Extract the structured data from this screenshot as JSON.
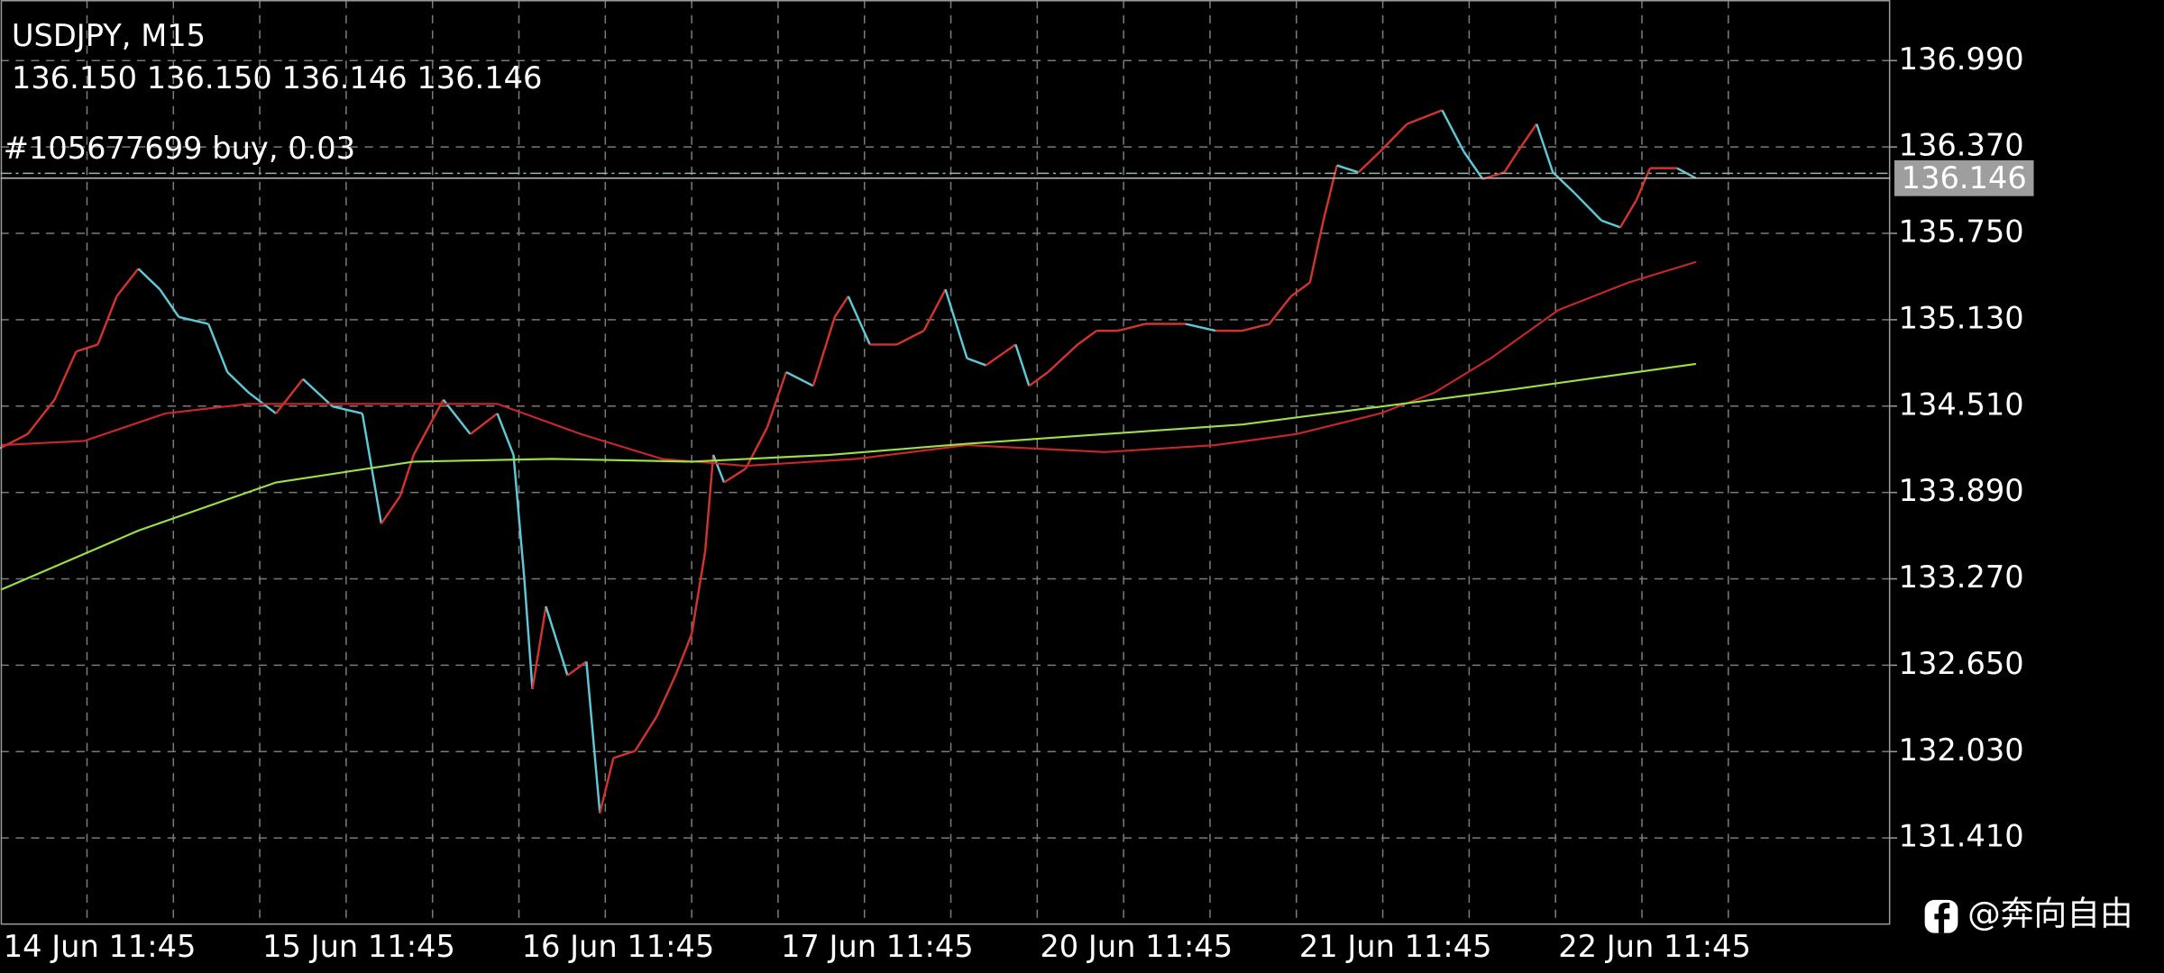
{
  "chart_data": {
    "type": "line",
    "title": "USDJPY, M15",
    "subtitle": "136.150 136.150 136.146 136.146",
    "annotation": "#105677699 buy, 0.03",
    "watermark": "@奔向自由",
    "current_price": 136.146,
    "order_price": 136.181,
    "xlim": [
      0,
      700
    ],
    "xticks": [
      {
        "value": 0,
        "label": "14 Jun 11:45"
      },
      {
        "value": 96,
        "label": "15 Jun 11:45"
      },
      {
        "value": 192,
        "label": "16 Jun 11:45"
      },
      {
        "value": 288,
        "label": "17 Jun 11:45"
      },
      {
        "value": 384,
        "label": "20 Jun 11:45"
      },
      {
        "value": 480,
        "label": "21 Jun 11:45"
      },
      {
        "value": 576,
        "label": "22 Jun 11:45"
      }
    ],
    "ylim": [
      130.797,
      137.425
    ],
    "yticks": [
      {
        "value": 131.41,
        "label": "131.410"
      },
      {
        "value": 132.03,
        "label": "132.030"
      },
      {
        "value": 132.65,
        "label": "132.650"
      },
      {
        "value": 133.27,
        "label": "133.270"
      },
      {
        "value": 133.89,
        "label": "133.890"
      },
      {
        "value": 134.51,
        "label": "134.510"
      },
      {
        "value": 135.13,
        "label": "135.130"
      },
      {
        "value": 135.75,
        "label": "135.750"
      },
      {
        "value": 136.37,
        "label": "136.370"
      },
      {
        "value": 136.99,
        "label": "136.990"
      }
    ],
    "grid": true,
    "up_color": "#d0342c",
    "down_color": "#5ec9d6",
    "series": [
      {
        "color": "#5ec9d6",
        "x": [
          0,
          10,
          20,
          28,
          36,
          43,
          51,
          59,
          66,
          77,
          84,
          92,
          102,
          112,
          123,
          134,
          141,
          148,
          153,
          164,
          174,
          184,
          190,
          194,
          197,
          202,
          210,
          217,
          222,
          227,
          235,
          243,
          250,
          256,
          261,
          264,
          268,
          276,
          284,
          291,
          301,
          309,
          314,
          322,
          332,
          342,
          350,
          358,
          365,
          376,
          381,
          388,
          399,
          406,
          414,
          424,
          439,
          450,
          460,
          470,
          478,
          485,
          490,
          495,
          503,
          511,
          521,
          534,
          542,
          549,
          557,
          562,
          569,
          575,
          583,
          593,
          600,
          606,
          611,
          621,
          628
        ],
        "values": [
          134.21,
          134.309,
          134.556,
          134.902,
          134.952,
          135.298,
          135.496,
          135.348,
          135.15,
          135.1,
          134.754,
          134.605,
          134.457,
          134.704,
          134.507,
          134.457,
          133.666,
          133.864,
          134.16,
          134.556,
          134.309,
          134.457,
          134.16,
          133.27,
          132.479,
          133.072,
          132.577,
          132.676,
          131.588,
          131.984,
          132.034,
          132.281,
          132.577,
          132.874,
          133.468,
          134.16,
          133.962,
          134.061,
          134.358,
          134.754,
          134.655,
          135.15,
          135.298,
          134.952,
          134.952,
          135.051,
          135.348,
          134.853,
          134.803,
          134.952,
          134.655,
          134.754,
          134.952,
          135.051,
          135.051,
          135.1,
          135.1,
          135.051,
          135.051,
          135.1,
          135.298,
          135.397,
          135.842,
          136.238,
          136.188,
          136.337,
          136.535,
          136.634,
          136.337,
          136.14,
          136.188,
          136.337,
          136.535,
          136.188,
          136.04,
          135.842,
          135.793,
          135.99,
          136.218,
          136.218,
          136.146
        ]
      },
      {
        "color": "#c8272a",
        "x": [
          0,
          31,
          61,
          92,
          133,
          184,
          215,
          245,
          276,
          317,
          358,
          409,
          450,
          480,
          511,
          531,
          552,
          577,
          603,
          628
        ],
        "values": [
          134.23,
          134.26,
          134.457,
          134.526,
          134.526,
          134.526,
          134.309,
          134.131,
          134.081,
          134.131,
          134.23,
          134.18,
          134.23,
          134.309,
          134.457,
          134.605,
          134.853,
          135.199,
          135.397,
          135.545
        ]
      },
      {
        "color": "#9be04a",
        "x": [
          0,
          51,
          102,
          153,
          204,
          256,
          307,
          358,
          409,
          460,
          511,
          562,
          628
        ],
        "values": [
          133.191,
          133.616,
          133.962,
          134.111,
          134.131,
          134.111,
          134.16,
          134.24,
          134.309,
          134.378,
          134.506,
          134.635,
          134.813
        ]
      }
    ]
  }
}
